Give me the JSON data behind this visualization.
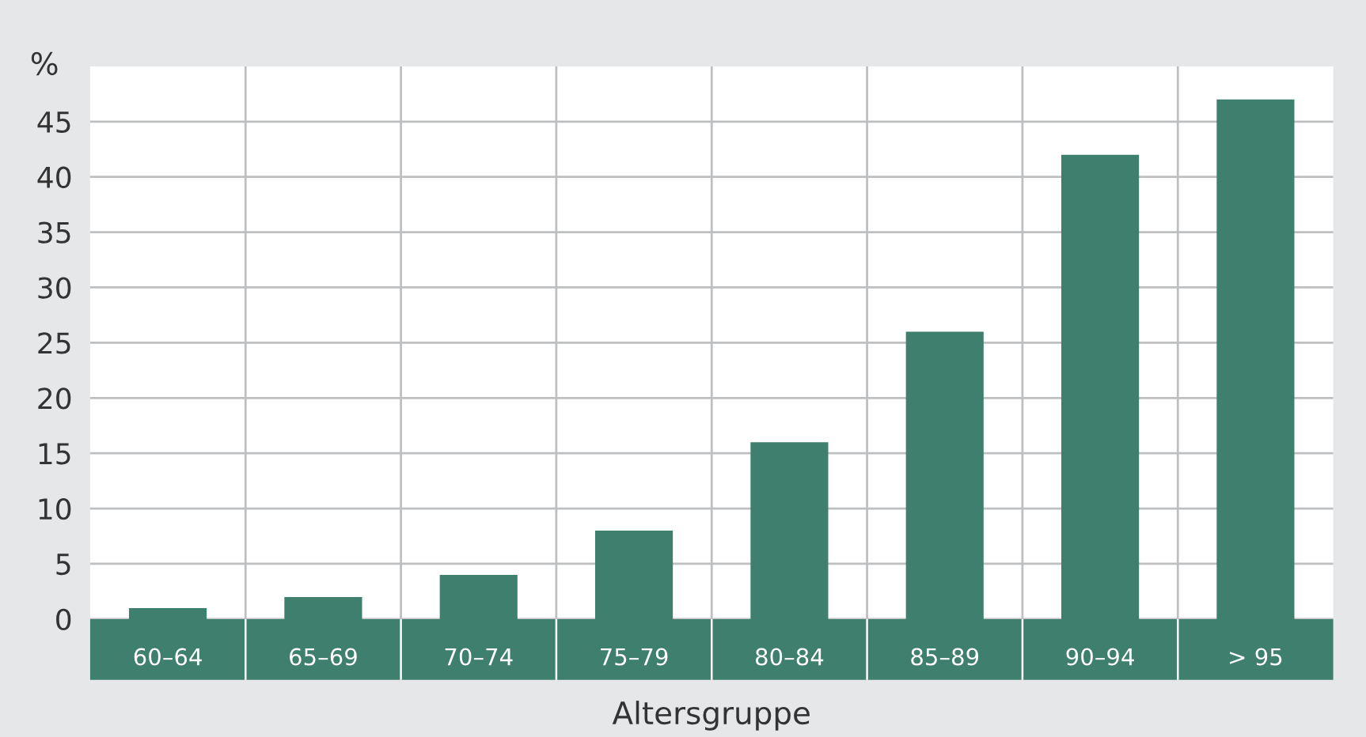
{
  "chart_data": {
    "type": "bar",
    "categories": [
      "60–64",
      "65–69",
      "70–74",
      "75–79",
      "80–84",
      "85–89",
      "90–94",
      "> 95"
    ],
    "values": [
      1,
      2,
      4,
      8,
      16,
      26,
      42,
      47
    ],
    "color": "#3f7f6d",
    "xlabel": "Altersgruppe",
    "ylabel": "%",
    "ylim": [
      0,
      50
    ],
    "yticks": [
      0,
      5,
      10,
      15,
      20,
      25,
      30,
      35,
      40,
      45
    ],
    "grid": true
  }
}
